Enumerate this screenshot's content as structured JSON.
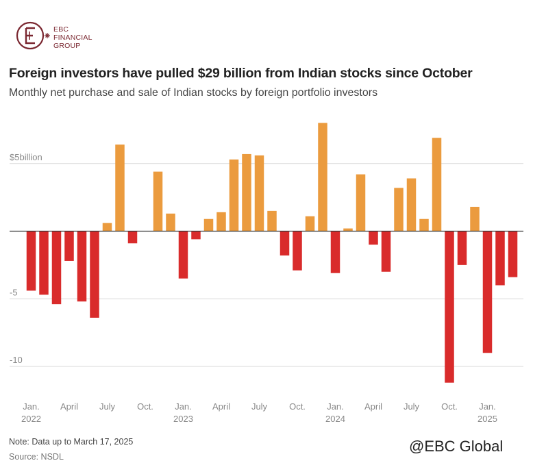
{
  "brand": {
    "line1": "EBC",
    "line2": "FINANCIAL",
    "line3": "GROUP",
    "color": "#7a2730"
  },
  "header": {
    "title": "Foreign investors have pulled $29 billion from Indian stocks since October",
    "subtitle": "Monthly net purchase and sale of Indian stocks by foreign portfolio investors"
  },
  "footer": {
    "note": "Note: Data up to March 17, 2025",
    "source": "Source: NSDL"
  },
  "watermark": "@EBC Global",
  "colors": {
    "positive": "#eb9b3e",
    "negative": "#d92b2b",
    "grid": "#d9d9d9",
    "zero_line": "#333333",
    "tick_text": "#888888"
  },
  "chart_data": {
    "type": "bar",
    "title": "Foreign investors have pulled $29 billion from Indian stocks since October",
    "subtitle": "Monthly net purchase and sale of Indian stocks by foreign portfolio investors",
    "ylabel": "",
    "ylim": [
      -12,
      9
    ],
    "grid": true,
    "y_ticks": [
      {
        "value": 5,
        "label": "$5billion"
      },
      {
        "value": -5,
        "label": "-5"
      },
      {
        "value": -10,
        "label": "-10"
      }
    ],
    "x_ticks": [
      {
        "index": 0,
        "label": "Jan.",
        "year": "2022"
      },
      {
        "index": 3,
        "label": "April",
        "year": ""
      },
      {
        "index": 6,
        "label": "July",
        "year": ""
      },
      {
        "index": 9,
        "label": "Oct.",
        "year": ""
      },
      {
        "index": 12,
        "label": "Jan.",
        "year": "2023"
      },
      {
        "index": 15,
        "label": "April",
        "year": ""
      },
      {
        "index": 18,
        "label": "July",
        "year": ""
      },
      {
        "index": 21,
        "label": "Oct.",
        "year": ""
      },
      {
        "index": 24,
        "label": "Jan.",
        "year": "2024"
      },
      {
        "index": 27,
        "label": "April",
        "year": ""
      },
      {
        "index": 30,
        "label": "July",
        "year": ""
      },
      {
        "index": 33,
        "label": "Oct.",
        "year": ""
      },
      {
        "index": 36,
        "label": "Jan.",
        "year": "2025"
      }
    ],
    "categories": [
      "2022-01",
      "2022-02",
      "2022-03",
      "2022-04",
      "2022-05",
      "2022-06",
      "2022-07",
      "2022-08",
      "2022-09",
      "2022-10",
      "2022-11",
      "2022-12",
      "2023-01",
      "2023-02",
      "2023-03",
      "2023-04",
      "2023-05",
      "2023-06",
      "2023-07",
      "2023-08",
      "2023-09",
      "2023-10",
      "2023-11",
      "2023-12",
      "2024-01",
      "2024-02",
      "2024-03",
      "2024-04",
      "2024-05",
      "2024-06",
      "2024-07",
      "2024-08",
      "2024-09",
      "2024-10",
      "2024-11",
      "2024-12",
      "2025-01",
      "2025-02",
      "2025-03"
    ],
    "values": [
      -4.4,
      -4.7,
      -5.4,
      -2.2,
      -5.2,
      -6.4,
      0.6,
      6.4,
      -0.9,
      0.0,
      4.4,
      1.3,
      -3.5,
      -0.6,
      0.9,
      1.4,
      5.3,
      5.7,
      5.6,
      1.5,
      -1.8,
      -2.9,
      1.1,
      8.0,
      -3.1,
      0.2,
      4.2,
      -1.0,
      -3.0,
      3.2,
      3.9,
      0.9,
      6.9,
      -11.2,
      -2.5,
      1.8,
      -9.0,
      -4.0,
      -3.4
    ]
  }
}
